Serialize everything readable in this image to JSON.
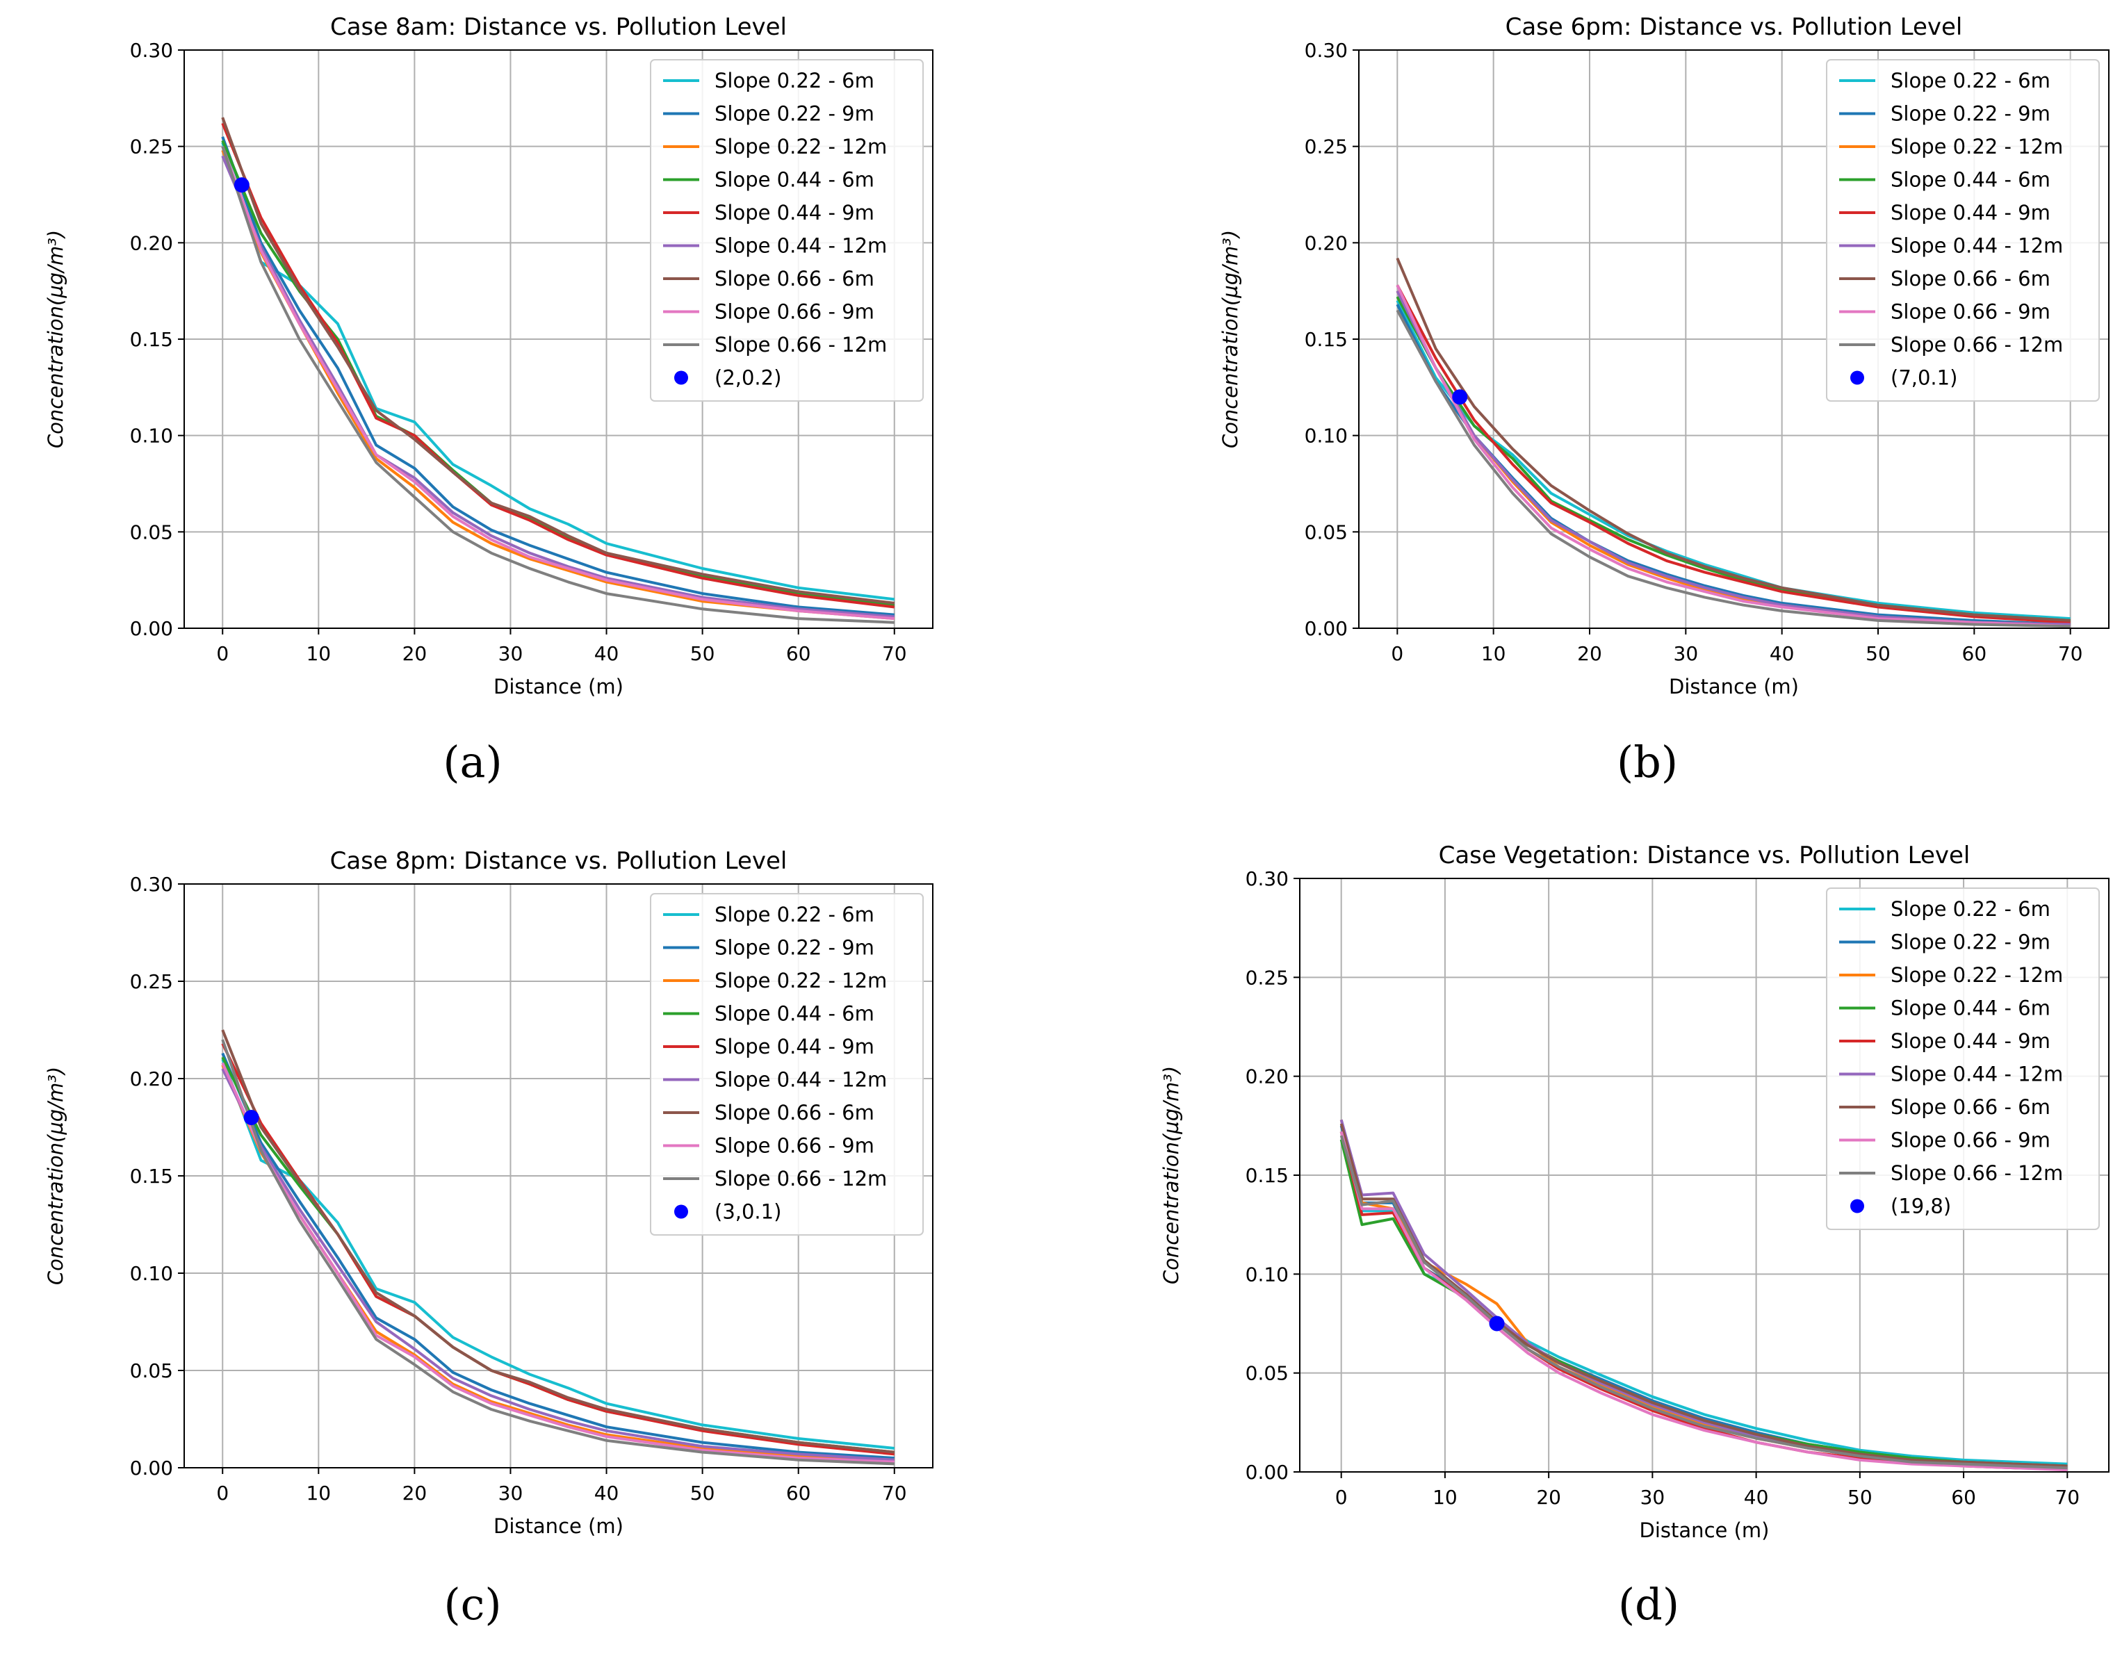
{
  "chart_data": [
    {
      "type": "line",
      "panel": "a",
      "caption": "(a)",
      "title": "Case 8am: Distance vs. Pollution Level",
      "xlabel": "Distance (m)",
      "ylabel": "Concentration(µg/m³)",
      "xlim": [
        -4,
        74
      ],
      "ylim": [
        0,
        0.3
      ],
      "xticks": [
        0,
        10,
        20,
        30,
        40,
        50,
        60,
        70
      ],
      "yticks": [
        "0.00",
        "0.05",
        "0.10",
        "0.15",
        "0.20",
        "0.25",
        "0.30"
      ],
      "grid": true,
      "legend": "top-right",
      "x": [
        0,
        4,
        8,
        12,
        16,
        20,
        24,
        28,
        32,
        36,
        40,
        50,
        60,
        70
      ],
      "series": [
        {
          "name": "Slope 0.22 - 6m",
          "color": "#17becf",
          "values": [
            0.252,
            0.19,
            0.178,
            0.158,
            0.114,
            0.107,
            0.085,
            0.074,
            0.062,
            0.054,
            0.044,
            0.031,
            0.021,
            0.015
          ]
        },
        {
          "name": "Slope 0.22 - 9m",
          "color": "#1f77b4",
          "values": [
            0.255,
            0.2,
            0.165,
            0.135,
            0.095,
            0.083,
            0.063,
            0.051,
            0.043,
            0.036,
            0.029,
            0.018,
            0.011,
            0.007
          ]
        },
        {
          "name": "Slope 0.22 - 12m",
          "color": "#ff7f0e",
          "values": [
            0.248,
            0.195,
            0.158,
            0.122,
            0.088,
            0.073,
            0.055,
            0.044,
            0.036,
            0.03,
            0.024,
            0.014,
            0.009,
            0.005
          ]
        },
        {
          "name": "Slope 0.44 - 6m",
          "color": "#2ca02c",
          "values": [
            0.253,
            0.205,
            0.175,
            0.15,
            0.11,
            0.1,
            0.082,
            0.065,
            0.057,
            0.047,
            0.039,
            0.027,
            0.018,
            0.012
          ]
        },
        {
          "name": "Slope 0.44 - 9m",
          "color": "#d62728",
          "values": [
            0.262,
            0.213,
            0.178,
            0.148,
            0.109,
            0.1,
            0.081,
            0.064,
            0.056,
            0.046,
            0.038,
            0.026,
            0.017,
            0.011
          ]
        },
        {
          "name": "Slope 0.44 - 12m",
          "color": "#9467bd",
          "values": [
            0.245,
            0.198,
            0.16,
            0.126,
            0.09,
            0.078,
            0.06,
            0.048,
            0.039,
            0.032,
            0.026,
            0.016,
            0.01,
            0.006
          ]
        },
        {
          "name": "Slope 0.66 - 6m",
          "color": "#8c564b",
          "values": [
            0.265,
            0.21,
            0.176,
            0.146,
            0.113,
            0.098,
            0.081,
            0.065,
            0.058,
            0.048,
            0.039,
            0.028,
            0.019,
            0.013
          ]
        },
        {
          "name": "Slope 0.66 - 9m",
          "color": "#e377c2",
          "values": [
            0.25,
            0.196,
            0.158,
            0.124,
            0.09,
            0.076,
            0.058,
            0.046,
            0.037,
            0.031,
            0.025,
            0.015,
            0.009,
            0.005
          ]
        },
        {
          "name": "Slope 0.66 - 12m",
          "color": "#7f7f7f",
          "values": [
            0.25,
            0.19,
            0.15,
            0.118,
            0.086,
            0.068,
            0.05,
            0.039,
            0.031,
            0.024,
            0.018,
            0.01,
            0.005,
            0.003
          ]
        }
      ],
      "marker": {
        "label": "(2,0.2)",
        "x": 2,
        "y": 0.23,
        "color": "#0000ff"
      }
    },
    {
      "type": "line",
      "panel": "b",
      "caption": "(b)",
      "title": "Case 6pm: Distance vs. Pollution Level",
      "xlabel": "Distance (m)",
      "ylabel": "Concentration(µg/m³)",
      "xlim": [
        -4,
        74
      ],
      "ylim": [
        0,
        0.3
      ],
      "xticks": [
        0,
        10,
        20,
        30,
        40,
        50,
        60,
        70
      ],
      "yticks": [
        "0.00",
        "0.05",
        "0.10",
        "0.15",
        "0.20",
        "0.25",
        "0.30"
      ],
      "grid": true,
      "legend": "top-right",
      "x": [
        0,
        4,
        8,
        12,
        16,
        20,
        24,
        28,
        32,
        36,
        40,
        50,
        60,
        70
      ],
      "series": [
        {
          "name": "Slope 0.22 - 6m",
          "color": "#17becf",
          "values": [
            0.17,
            0.13,
            0.105,
            0.09,
            0.07,
            0.059,
            0.048,
            0.04,
            0.033,
            0.027,
            0.021,
            0.013,
            0.008,
            0.005
          ]
        },
        {
          "name": "Slope 0.22 - 9m",
          "color": "#1f77b4",
          "values": [
            0.168,
            0.128,
            0.1,
            0.078,
            0.057,
            0.045,
            0.035,
            0.028,
            0.022,
            0.017,
            0.013,
            0.007,
            0.004,
            0.002
          ]
        },
        {
          "name": "Slope 0.22 - 12m",
          "color": "#ff7f0e",
          "values": [
            0.175,
            0.135,
            0.1,
            0.076,
            0.055,
            0.043,
            0.033,
            0.026,
            0.02,
            0.015,
            0.012,
            0.006,
            0.003,
            0.002
          ]
        },
        {
          "name": "Slope 0.44 - 6m",
          "color": "#2ca02c",
          "values": [
            0.172,
            0.135,
            0.105,
            0.088,
            0.066,
            0.056,
            0.046,
            0.038,
            0.031,
            0.025,
            0.02,
            0.012,
            0.007,
            0.004
          ]
        },
        {
          "name": "Slope 0.44 - 9m",
          "color": "#d62728",
          "values": [
            0.178,
            0.14,
            0.108,
            0.085,
            0.065,
            0.055,
            0.044,
            0.035,
            0.029,
            0.024,
            0.019,
            0.011,
            0.006,
            0.003
          ]
        },
        {
          "name": "Slope 0.44 - 12m",
          "color": "#9467bd",
          "values": [
            0.175,
            0.135,
            0.1,
            0.077,
            0.056,
            0.045,
            0.034,
            0.027,
            0.021,
            0.016,
            0.012,
            0.006,
            0.003,
            0.002
          ]
        },
        {
          "name": "Slope 0.66 - 6m",
          "color": "#8c564b",
          "values": [
            0.192,
            0.145,
            0.115,
            0.093,
            0.074,
            0.061,
            0.049,
            0.039,
            0.032,
            0.026,
            0.021,
            0.012,
            0.007,
            0.004
          ]
        },
        {
          "name": "Slope 0.66 - 9m",
          "color": "#e377c2",
          "values": [
            0.178,
            0.135,
            0.098,
            0.073,
            0.052,
            0.041,
            0.031,
            0.024,
            0.019,
            0.014,
            0.011,
            0.005,
            0.003,
            0.001
          ]
        },
        {
          "name": "Slope 0.66 - 12m",
          "color": "#7f7f7f",
          "values": [
            0.165,
            0.128,
            0.095,
            0.07,
            0.049,
            0.037,
            0.027,
            0.021,
            0.016,
            0.012,
            0.009,
            0.004,
            0.002,
            0.001
          ]
        }
      ],
      "marker": {
        "label": "(7,0.1)",
        "x": 6.5,
        "y": 0.12,
        "color": "#0000ff"
      }
    },
    {
      "type": "line",
      "panel": "c",
      "caption": "(c)",
      "title": "Case 8pm: Distance vs. Pollution Level",
      "xlabel": "Distance (m)",
      "ylabel": "Concentration(µg/m³)",
      "xlim": [
        -4,
        74
      ],
      "ylim": [
        0,
        0.3
      ],
      "xticks": [
        0,
        10,
        20,
        30,
        40,
        50,
        60,
        70
      ],
      "yticks": [
        "0.00",
        "0.05",
        "0.10",
        "0.15",
        "0.20",
        "0.25",
        "0.30"
      ],
      "grid": true,
      "legend": "top-right",
      "x": [
        0,
        4,
        8,
        12,
        16,
        20,
        24,
        28,
        32,
        36,
        40,
        50,
        60,
        70
      ],
      "series": [
        {
          "name": "Slope 0.22 - 6m",
          "color": "#17becf",
          "values": [
            0.21,
            0.158,
            0.148,
            0.126,
            0.092,
            0.085,
            0.067,
            0.057,
            0.048,
            0.041,
            0.033,
            0.022,
            0.015,
            0.01
          ]
        },
        {
          "name": "Slope 0.22 - 9m",
          "color": "#1f77b4",
          "values": [
            0.213,
            0.167,
            0.137,
            0.108,
            0.077,
            0.066,
            0.049,
            0.04,
            0.033,
            0.027,
            0.021,
            0.013,
            0.008,
            0.005
          ]
        },
        {
          "name": "Slope 0.22 - 12m",
          "color": "#ff7f0e",
          "values": [
            0.207,
            0.162,
            0.13,
            0.1,
            0.07,
            0.058,
            0.043,
            0.034,
            0.028,
            0.022,
            0.017,
            0.01,
            0.006,
            0.004
          ]
        },
        {
          "name": "Slope 0.44 - 6m",
          "color": "#2ca02c",
          "values": [
            0.211,
            0.171,
            0.145,
            0.12,
            0.088,
            0.078,
            0.062,
            0.05,
            0.043,
            0.035,
            0.029,
            0.02,
            0.013,
            0.008
          ]
        },
        {
          "name": "Slope 0.44 - 9m",
          "color": "#d62728",
          "values": [
            0.218,
            0.177,
            0.148,
            0.12,
            0.088,
            0.078,
            0.062,
            0.05,
            0.043,
            0.035,
            0.029,
            0.019,
            0.012,
            0.007
          ]
        },
        {
          "name": "Slope 0.44 - 12m",
          "color": "#9467bd",
          "values": [
            0.205,
            0.165,
            0.133,
            0.104,
            0.075,
            0.061,
            0.046,
            0.037,
            0.03,
            0.024,
            0.019,
            0.011,
            0.007,
            0.004
          ]
        },
        {
          "name": "Slope 0.66 - 6m",
          "color": "#8c564b",
          "values": [
            0.225,
            0.175,
            0.147,
            0.12,
            0.09,
            0.078,
            0.062,
            0.05,
            0.044,
            0.036,
            0.03,
            0.02,
            0.013,
            0.008
          ]
        },
        {
          "name": "Slope 0.66 - 9m",
          "color": "#e377c2",
          "values": [
            0.208,
            0.163,
            0.13,
            0.1,
            0.068,
            0.057,
            0.042,
            0.033,
            0.027,
            0.021,
            0.016,
            0.009,
            0.005,
            0.003
          ]
        },
        {
          "name": "Slope 0.66 - 12m",
          "color": "#7f7f7f",
          "values": [
            0.22,
            0.163,
            0.127,
            0.097,
            0.066,
            0.053,
            0.039,
            0.03,
            0.024,
            0.019,
            0.014,
            0.008,
            0.004,
            0.002
          ]
        }
      ],
      "marker": {
        "label": "(3,0.1)",
        "x": 3,
        "y": 0.18,
        "color": "#0000ff"
      }
    },
    {
      "type": "line",
      "panel": "d",
      "caption": "(d)",
      "title": "Case Vegetation: Distance vs. Pollution Level",
      "xlabel": "Distance (m)",
      "ylabel": "Concentration(µg/m³)",
      "xlim": [
        -4,
        74
      ],
      "ylim": [
        0,
        0.3
      ],
      "xticks": [
        0,
        10,
        20,
        30,
        40,
        50,
        60,
        70
      ],
      "yticks": [
        "0.00",
        "0.05",
        "0.10",
        "0.15",
        "0.20",
        "0.25",
        "0.30"
      ],
      "grid": true,
      "legend": "top-right",
      "x": [
        0,
        2,
        5,
        8,
        12,
        15,
        18,
        21,
        25,
        30,
        35,
        40,
        45,
        50,
        55,
        60,
        65,
        70
      ],
      "series": [
        {
          "name": "Slope 0.22 - 6m",
          "color": "#17becf",
          "values": [
            0.172,
            0.132,
            0.132,
            0.1,
            0.09,
            0.076,
            0.066,
            0.058,
            0.049,
            0.038,
            0.029,
            0.022,
            0.016,
            0.011,
            0.008,
            0.006,
            0.005,
            0.004
          ]
        },
        {
          "name": "Slope 0.22 - 9m",
          "color": "#1f77b4",
          "values": [
            0.175,
            0.136,
            0.136,
            0.103,
            0.09,
            0.075,
            0.064,
            0.056,
            0.047,
            0.036,
            0.027,
            0.02,
            0.014,
            0.01,
            0.007,
            0.005,
            0.004,
            0.003
          ]
        },
        {
          "name": "Slope 0.22 - 12m",
          "color": "#ff7f0e",
          "values": [
            0.178,
            0.136,
            0.133,
            0.106,
            0.095,
            0.085,
            0.065,
            0.053,
            0.044,
            0.033,
            0.024,
            0.017,
            0.012,
            0.008,
            0.005,
            0.004,
            0.003,
            0.002
          ]
        },
        {
          "name": "Slope 0.44 - 6m",
          "color": "#2ca02c",
          "values": [
            0.168,
            0.125,
            0.128,
            0.1,
            0.088,
            0.075,
            0.064,
            0.056,
            0.046,
            0.035,
            0.026,
            0.019,
            0.014,
            0.01,
            0.007,
            0.005,
            0.004,
            0.003
          ]
        },
        {
          "name": "Slope 0.44 - 9m",
          "color": "#d62728",
          "values": [
            0.172,
            0.13,
            0.131,
            0.103,
            0.088,
            0.075,
            0.062,
            0.052,
            0.042,
            0.031,
            0.022,
            0.015,
            0.01,
            0.007,
            0.005,
            0.003,
            0.002,
            0.002
          ]
        },
        {
          "name": "Slope 0.44 - 12m",
          "color": "#9467bd",
          "values": [
            0.178,
            0.14,
            0.141,
            0.11,
            0.092,
            0.078,
            0.065,
            0.055,
            0.045,
            0.034,
            0.025,
            0.018,
            0.012,
            0.008,
            0.006,
            0.004,
            0.003,
            0.002
          ]
        },
        {
          "name": "Slope 0.66 - 6m",
          "color": "#8c564b",
          "values": [
            0.176,
            0.138,
            0.138,
            0.107,
            0.09,
            0.076,
            0.064,
            0.055,
            0.046,
            0.035,
            0.026,
            0.019,
            0.013,
            0.009,
            0.006,
            0.005,
            0.004,
            0.003
          ]
        },
        {
          "name": "Slope 0.66 - 9m",
          "color": "#e377c2",
          "values": [
            0.172,
            0.133,
            0.133,
            0.103,
            0.087,
            0.073,
            0.06,
            0.05,
            0.04,
            0.029,
            0.021,
            0.015,
            0.01,
            0.006,
            0.004,
            0.003,
            0.002,
            0.001
          ]
        },
        {
          "name": "Slope 0.66 - 12m",
          "color": "#7f7f7f",
          "values": [
            0.17,
            0.135,
            0.137,
            0.106,
            0.089,
            0.075,
            0.062,
            0.053,
            0.043,
            0.032,
            0.023,
            0.017,
            0.012,
            0.008,
            0.005,
            0.004,
            0.003,
            0.002
          ]
        }
      ],
      "marker": {
        "label": "(19,8)",
        "x": 15,
        "y": 0.075,
        "color": "#0000ff"
      }
    }
  ]
}
